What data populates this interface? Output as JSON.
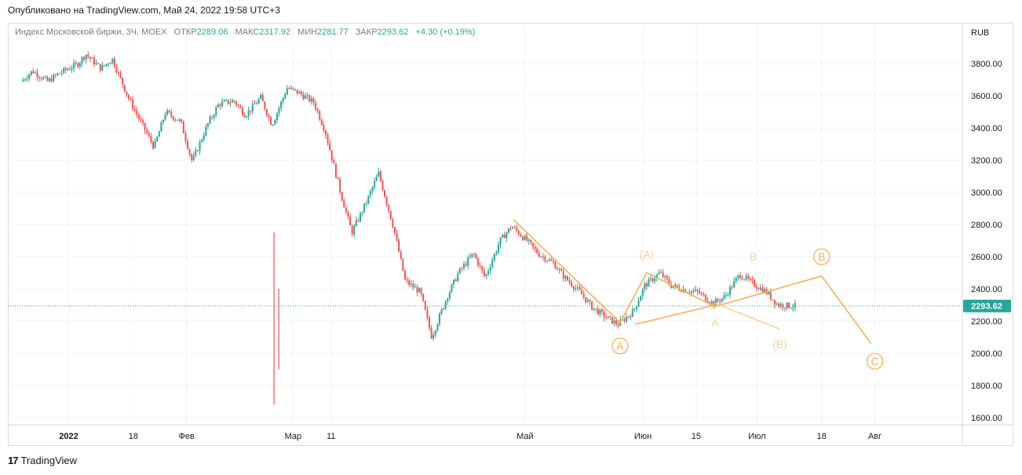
{
  "published": "Опубликовано на TradingView.com, Май 24, 2022 19:58 UTC+3",
  "legend": {
    "symbol": "Индекс Московской биржи, 3Ч, MOEX",
    "open_label": "ОТКР",
    "open": "2289.06",
    "high_label": "МАКС",
    "high": "2317.92",
    "low_label": "МИН",
    "low": "2281.77",
    "close_label": "ЗАКР",
    "close": "2293.62",
    "change": "+4.30 (+0.19%)"
  },
  "footer": {
    "logo_mark": "17",
    "logo_text": "TradingView"
  },
  "colors": {
    "up": "#26a69a",
    "down": "#ef5350",
    "wave": "#f7b24f",
    "wave_light": "#fad09a",
    "price_line": "#26a69a"
  },
  "chart_data": {
    "type": "candlestick",
    "currency": "RUB",
    "last_price": "2293.62",
    "ylim": [
      1560,
      4050
    ],
    "y_ticks": [
      "3800.00",
      "3600.00",
      "3400.00",
      "3200.00",
      "3000.00",
      "2800.00",
      "2600.00",
      "2400.00",
      "2200.00",
      "2000.00",
      "1800.00",
      "1600.00"
    ],
    "x_ticks": [
      "2022",
      "18",
      "Фев",
      "Мар",
      "11",
      "Май",
      "Июн",
      "15",
      "Июл",
      "18",
      "Авг"
    ],
    "price_path": [
      [
        "2021-12-20",
        3690
      ],
      [
        "2021-12-23",
        3755
      ],
      [
        "2021-12-27",
        3690
      ],
      [
        "2021-12-30",
        3740
      ],
      [
        "2022-01-04",
        3800
      ],
      [
        "2022-01-06",
        3860
      ],
      [
        "2022-01-10",
        3770
      ],
      [
        "2022-01-13",
        3830
      ],
      [
        "2022-01-17",
        3600
      ],
      [
        "2022-01-20",
        3460
      ],
      [
        "2022-01-24",
        3280
      ],
      [
        "2022-01-27",
        3500
      ],
      [
        "2022-01-31",
        3440
      ],
      [
        "2022-02-03",
        3190
      ],
      [
        "2022-02-07",
        3420
      ],
      [
        "2022-02-10",
        3550
      ],
      [
        "2022-02-14",
        3570
      ],
      [
        "2022-02-17",
        3480
      ],
      [
        "2022-02-21",
        3590
      ],
      [
        "2022-02-24",
        3420
      ],
      [
        "2022-02-28",
        3650
      ],
      [
        "2022-03-03",
        3620
      ],
      [
        "2022-03-07",
        3560
      ],
      [
        "2022-03-10",
        3380
      ],
      [
        "2022-03-14",
        3000
      ],
      [
        "2022-03-17",
        2750
      ],
      [
        "2022-03-21",
        2950
      ],
      [
        "2022-03-24",
        3120
      ],
      [
        "2022-03-28",
        2780
      ],
      [
        "2022-03-31",
        2450
      ],
      [
        "2022-04-04",
        2380
      ],
      [
        "2022-04-07",
        2100
      ],
      [
        "2022-04-11",
        2350
      ],
      [
        "2022-04-14",
        2500
      ],
      [
        "2022-04-18",
        2620
      ],
      [
        "2022-04-21",
        2470
      ],
      [
        "2022-04-25",
        2700
      ],
      [
        "2022-04-28",
        2790
      ],
      [
        "2022-05-02",
        2700
      ],
      [
        "2022-05-05",
        2620
      ],
      [
        "2022-05-09",
        2560
      ],
      [
        "2022-05-12",
        2470
      ],
      [
        "2022-05-16",
        2380
      ],
      [
        "2022-05-19",
        2290
      ],
      [
        "2022-05-23",
        2220
      ],
      [
        "2022-05-26",
        2180
      ],
      [
        "2022-05-30",
        2260
      ],
      [
        "2022-06-02",
        2420
      ],
      [
        "2022-06-06",
        2500
      ],
      [
        "2022-06-09",
        2420
      ],
      [
        "2022-06-13",
        2390
      ],
      [
        "2022-06-16",
        2380
      ],
      [
        "2022-06-20",
        2310
      ],
      [
        "2022-06-23",
        2350
      ],
      [
        "2022-06-27",
        2490
      ],
      [
        "2022-06-30",
        2440
      ],
      [
        "2022-07-04",
        2380
      ],
      [
        "2022-07-07",
        2300
      ],
      [
        "2022-07-11",
        2293.62
      ]
    ],
    "wave_lines": [
      {
        "points": [
          [
            "2022-04-28",
            2830
          ],
          [
            "2022-05-26",
            2190
          ]
        ],
        "color": "wave"
      },
      {
        "points": [
          [
            "2022-05-26",
            2190
          ],
          [
            "2022-06-02",
            2500
          ],
          [
            "2022-06-20",
            2290
          ],
          [
            "2022-07-18",
            2480
          ],
          [
            "2022-07-31",
            2060
          ]
        ],
        "color": "wave"
      },
      {
        "points": [
          [
            "2022-05-30",
            2180
          ],
          [
            "2022-06-20",
            2300
          ]
        ],
        "color": "wave"
      },
      {
        "points": [
          [
            "2022-06-20",
            2310
          ],
          [
            "2022-07-07",
            2150
          ]
        ],
        "color": "wave_light"
      }
    ],
    "wave_labels": [
      {
        "text": "A",
        "date": "2022-05-26",
        "value": 2045,
        "circled": true,
        "color": "wave"
      },
      {
        "text": "(A)",
        "date": "2022-06-02",
        "value": 2615,
        "circled": false,
        "color": "wave_light"
      },
      {
        "text": "A",
        "date": "2022-06-20",
        "value": 2190,
        "circled": false,
        "color": "wave_light"
      },
      {
        "text": "B",
        "date": "2022-06-30",
        "value": 2600,
        "circled": false,
        "color": "wave_light"
      },
      {
        "text": "(B)",
        "date": "2022-07-07",
        "value": 2055,
        "circled": false,
        "color": "wave_light"
      },
      {
        "text": "B",
        "date": "2022-07-18",
        "value": 2600,
        "circled": true,
        "color": "wave"
      },
      {
        "text": "C",
        "date": "2022-08-01",
        "value": 1950,
        "circled": true,
        "color": "wave"
      }
    ]
  }
}
